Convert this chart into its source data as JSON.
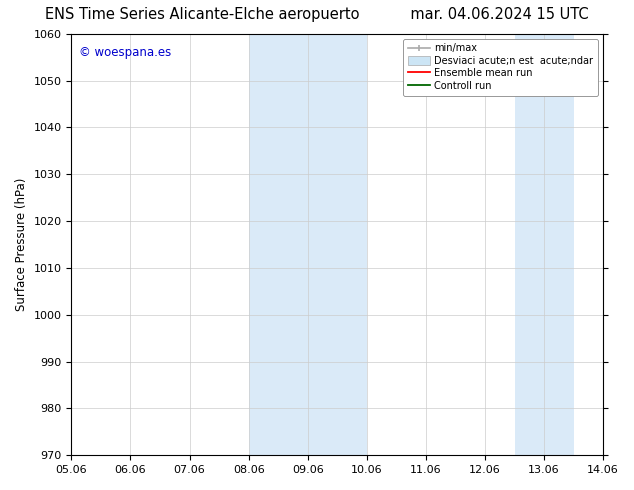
{
  "title_left": "ENS Time Series Alicante-Elche aeropuerto",
  "title_right": "mar. 04.06.2024 15 UTC",
  "ylabel": "Surface Pressure (hPa)",
  "xlim_dates": [
    "05.06",
    "06.06",
    "07.06",
    "08.06",
    "09.06",
    "10.06",
    "11.06",
    "12.06",
    "13.06",
    "14.06"
  ],
  "xlim": [
    0,
    9
  ],
  "ylim": [
    970,
    1060
  ],
  "yticks": [
    970,
    980,
    990,
    1000,
    1010,
    1020,
    1030,
    1040,
    1050,
    1060
  ],
  "xtick_positions": [
    0,
    1,
    2,
    3,
    4,
    5,
    6,
    7,
    8,
    9
  ],
  "shaded_regions": [
    {
      "xmin": 3.0,
      "xmax": 5.0,
      "color": "#daeaf8"
    },
    {
      "xmin": 7.5,
      "xmax": 8.5,
      "color": "#daeaf8"
    }
  ],
  "watermark": "© woespana.es",
  "watermark_color": "#0000cc",
  "background_color": "#ffffff",
  "legend_label_1": "min/max",
  "legend_label_2": "Desviaci acute;n est  acute;ndar",
  "legend_label_3": "Ensemble mean run",
  "legend_label_4": "Controll run",
  "legend_color_1": "#aaaaaa",
  "legend_color_2": "#cce5f5",
  "legend_color_3": "#ff0000",
  "legend_color_4": "#006600",
  "title_fontsize": 10.5,
  "ylabel_fontsize": 8.5,
  "tick_fontsize": 8,
  "watermark_fontsize": 8.5
}
